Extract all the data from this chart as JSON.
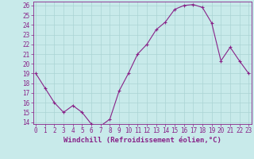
{
  "x": [
    0,
    1,
    2,
    3,
    4,
    5,
    6,
    7,
    8,
    9,
    10,
    11,
    12,
    13,
    14,
    15,
    16,
    17,
    18,
    19,
    20,
    21,
    22,
    23
  ],
  "y": [
    19,
    17.5,
    16,
    15,
    15.7,
    15,
    13.8,
    13.6,
    14.3,
    17.2,
    19.0,
    21.0,
    22.0,
    23.5,
    24.3,
    25.6,
    26.0,
    26.1,
    25.8,
    24.2,
    20.3,
    21.7,
    20.3,
    19.0
  ],
  "line_color": "#882288",
  "marker_color": "#882288",
  "bg_color": "#c8eaea",
  "grid_color": "#aad4d4",
  "xlabel": "Windchill (Refroidissement éolien,°C)",
  "ylim_min": 14,
  "ylim_max": 26,
  "xlim_min": 0,
  "xlim_max": 23,
  "yticks": [
    14,
    15,
    16,
    17,
    18,
    19,
    20,
    21,
    22,
    23,
    24,
    25,
    26
  ],
  "xticks": [
    0,
    1,
    2,
    3,
    4,
    5,
    6,
    7,
    8,
    9,
    10,
    11,
    12,
    13,
    14,
    15,
    16,
    17,
    18,
    19,
    20,
    21,
    22,
    23
  ],
  "tick_color": "#882288",
  "label_color": "#882288",
  "font_size": 5.5,
  "label_font_size": 6.5
}
